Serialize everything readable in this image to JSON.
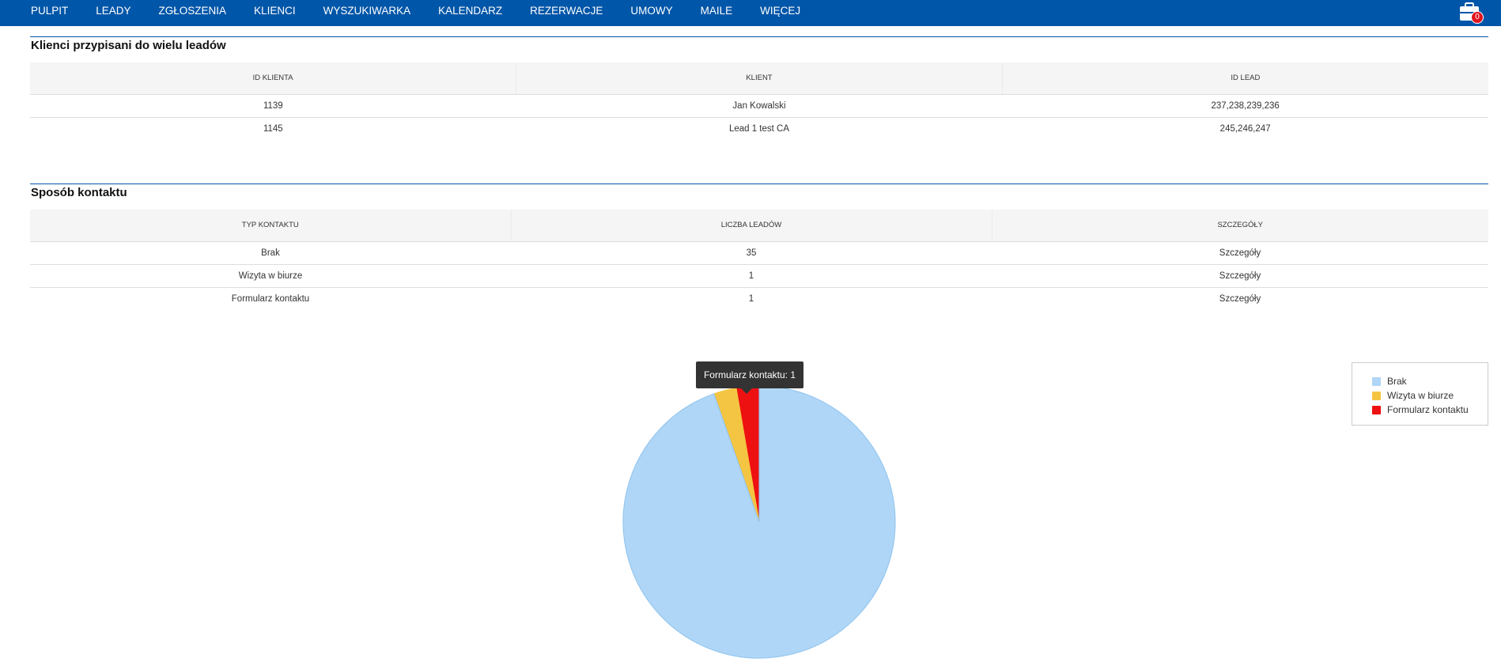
{
  "nav": {
    "items": [
      "PULPIT",
      "LEADY",
      "ZGŁOSZENIA",
      "KLIENCI",
      "WYSZUKIWARKA",
      "KALENDARZ",
      "REZERWACJE",
      "UMOWY",
      "MAILE",
      "WIĘCEJ"
    ],
    "cart_icon": "briefcase-icon",
    "cart_count": "0"
  },
  "clients": {
    "title": "Klienci przypisani do wielu leadów",
    "headers": [
      "ID KLIENTA",
      "KLIENT",
      "ID LEAD"
    ],
    "rows": [
      [
        "1139",
        "Jan Kowalski",
        "237,238,239,236"
      ],
      [
        "1145",
        "Lead 1 test CA",
        "245,246,247"
      ]
    ]
  },
  "contact": {
    "title": "Sposób kontaktu",
    "headers": [
      "TYP KONTAKTU",
      "LICZBA LEADÓW",
      "SZCZEGÓŁY"
    ],
    "rows": [
      [
        "Brak",
        "35",
        "Szczegóły"
      ],
      [
        "Wizyta w biurze",
        "1",
        "Szczegóły"
      ],
      [
        "Formularz kontaktu",
        "1",
        "Szczegóły"
      ]
    ]
  },
  "tooltip": "Formularz kontaktu: 1",
  "chart_data": {
    "type": "pie",
    "categories": [
      "Brak",
      "Wizyta w biurze",
      "Formularz kontaktu"
    ],
    "values": [
      35,
      1,
      1
    ],
    "colors": [
      "#afd6f6",
      "#f4c542",
      "#ee1111"
    ],
    "legend_position": "top-right"
  }
}
